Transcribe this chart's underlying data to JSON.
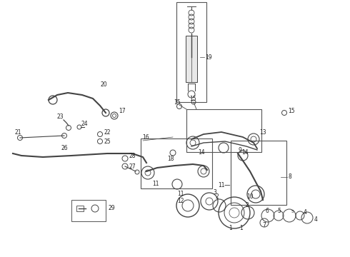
{
  "bg_color": "#ffffff",
  "line_color": "#444444",
  "box_color": "#555555",
  "text_color": "#222222",
  "figsize": [
    4.9,
    3.6
  ],
  "dpi": 100
}
